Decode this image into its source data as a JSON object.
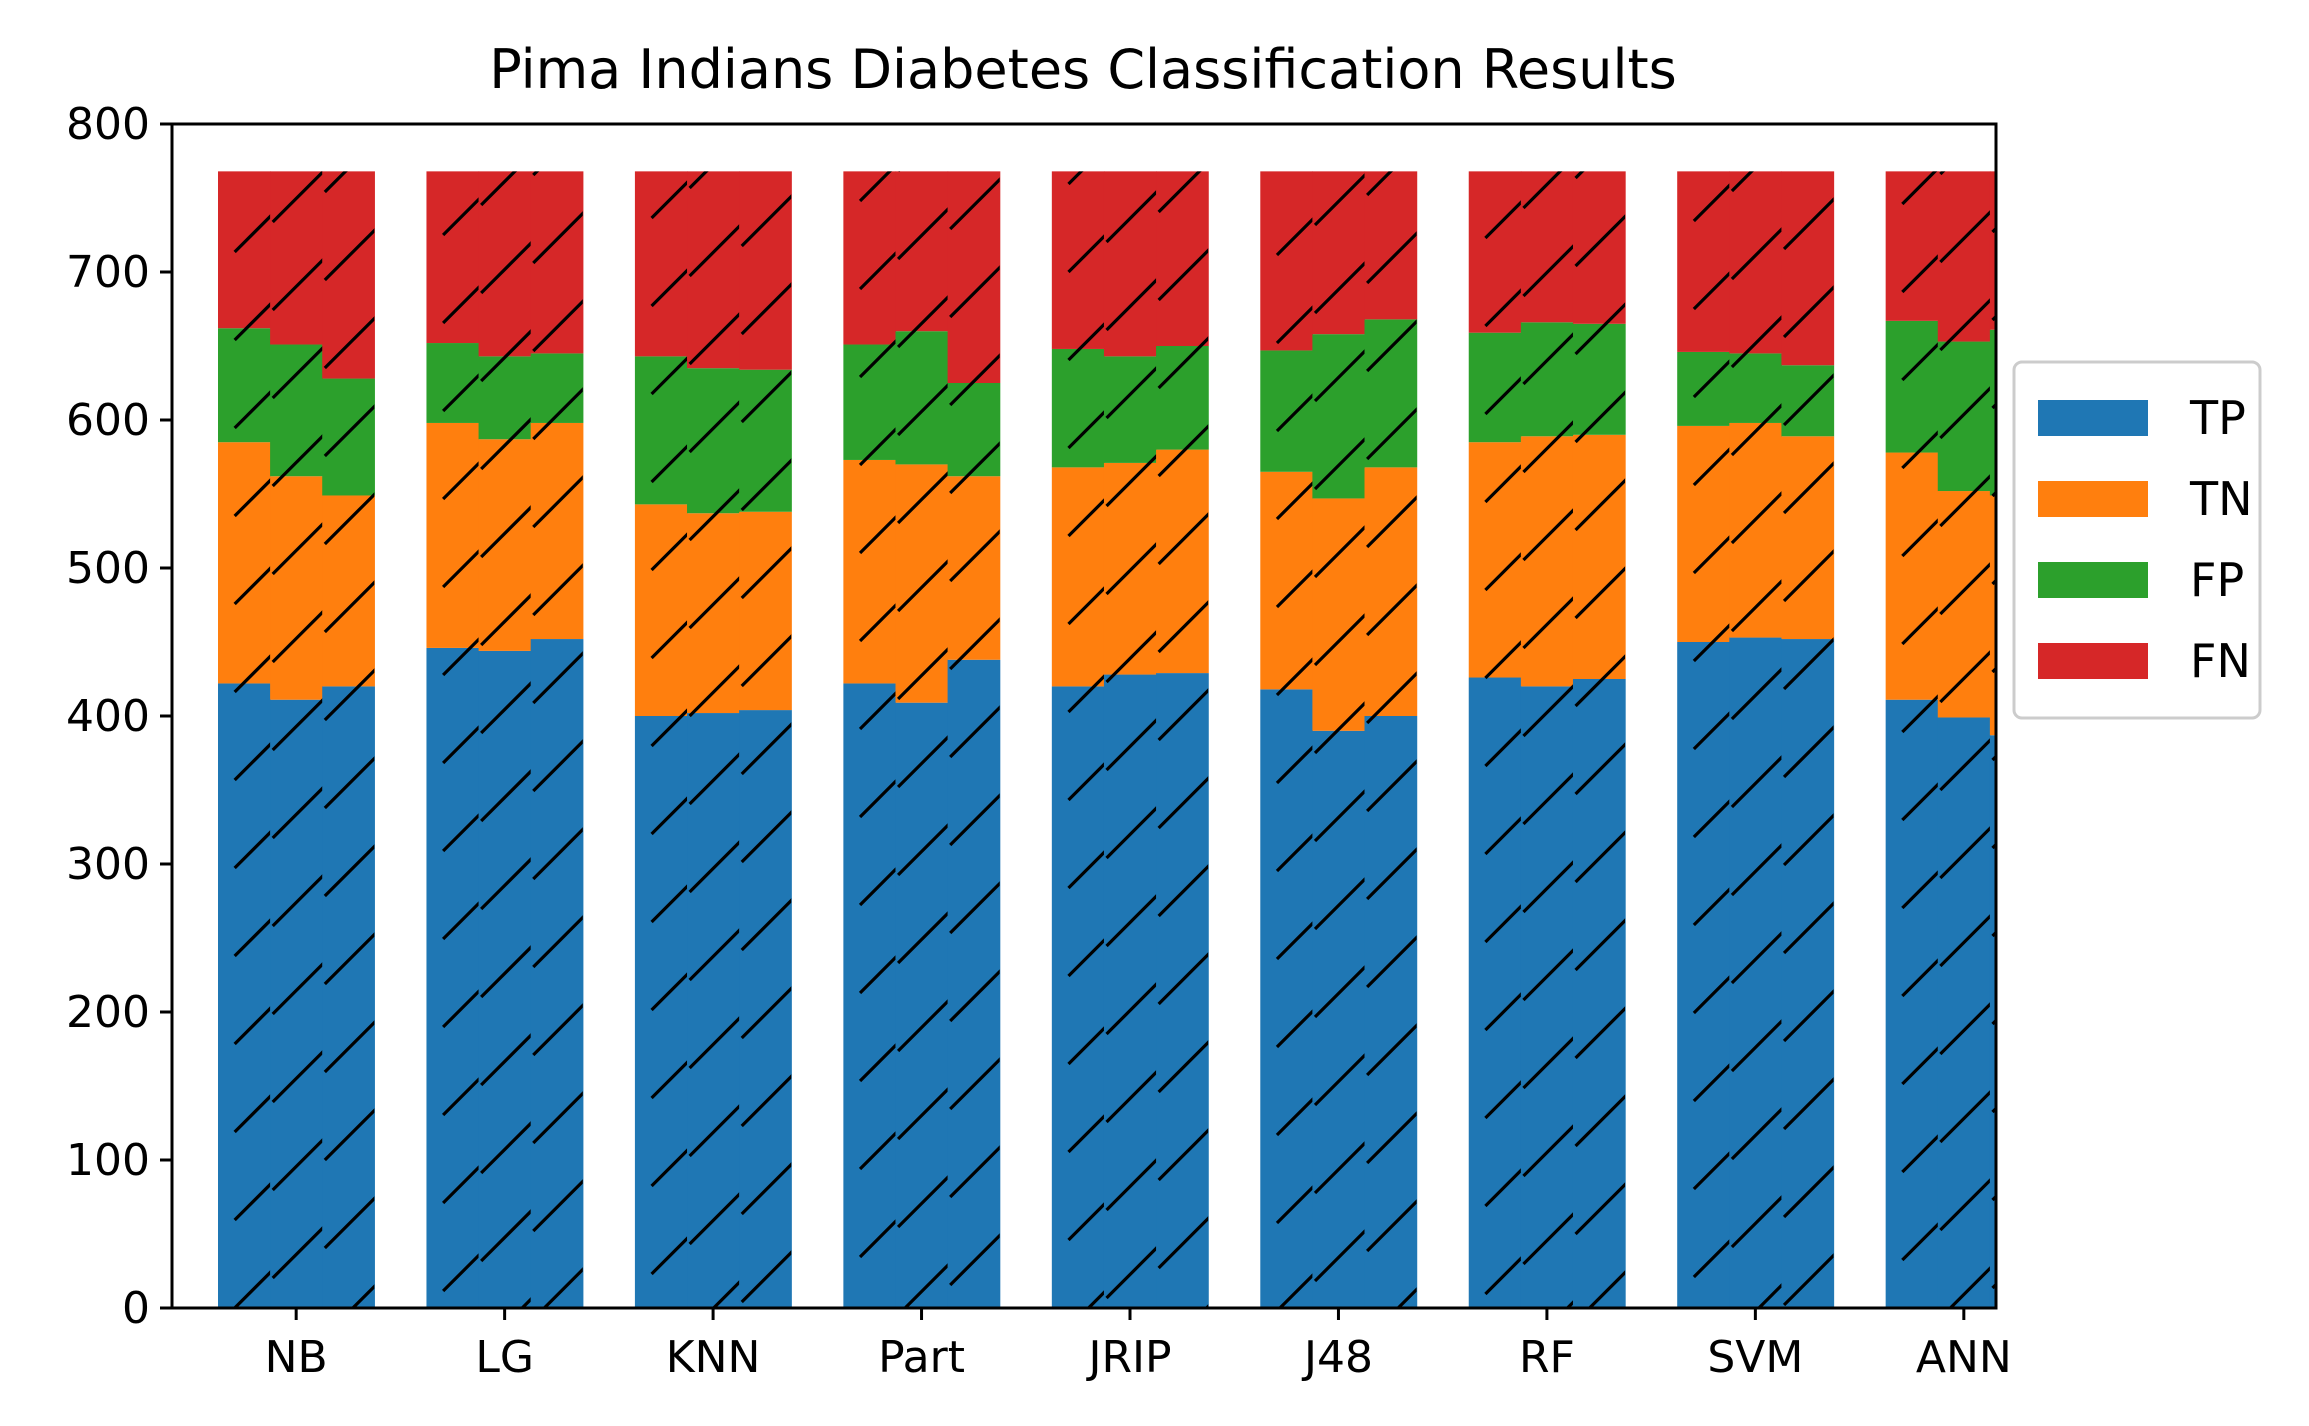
{
  "chart_data": {
    "type": "bar",
    "stacked": true,
    "title": "Pima Indians Diabetes Classification Results",
    "xlabel": "",
    "ylabel": "",
    "ylim": [
      0,
      800
    ],
    "yticks": [
      0,
      100,
      200,
      300,
      400,
      500,
      600,
      700,
      800
    ],
    "grid": false,
    "legend_position": "right",
    "hatch": "diagonal",
    "categories": [
      "NB",
      "LG",
      "KNN",
      "Part",
      "JRIP",
      "J48",
      "RF",
      "SVM",
      "ANN"
    ],
    "sub_bars_per_category": 3,
    "series": [
      {
        "name": "TP",
        "color": "#1f77b4",
        "values": [
          [
            422,
            411,
            420
          ],
          [
            446,
            444,
            452
          ],
          [
            400,
            402,
            404
          ],
          [
            422,
            409,
            438
          ],
          [
            420,
            428,
            429
          ],
          [
            418,
            390,
            400
          ],
          [
            426,
            420,
            425
          ],
          [
            450,
            453,
            452
          ],
          [
            411,
            399,
            387
          ]
        ]
      },
      {
        "name": "TN",
        "color": "#ff7f0e",
        "values": [
          [
            163,
            151,
            129
          ],
          [
            152,
            143,
            146
          ],
          [
            143,
            135,
            134
          ],
          [
            151,
            161,
            124
          ],
          [
            148,
            143,
            151
          ],
          [
            147,
            157,
            168
          ],
          [
            159,
            169,
            165
          ],
          [
            146,
            145,
            137
          ],
          [
            167,
            153,
            162
          ]
        ]
      },
      {
        "name": "FP",
        "color": "#2ca02c",
        "values": [
          [
            77,
            89,
            79
          ],
          [
            54,
            56,
            47
          ],
          [
            100,
            98,
            96
          ],
          [
            78,
            90,
            63
          ],
          [
            80,
            72,
            70
          ],
          [
            82,
            111,
            100
          ],
          [
            74,
            77,
            75
          ],
          [
            50,
            47,
            48
          ],
          [
            89,
            101,
            112
          ]
        ]
      },
      {
        "name": "FN",
        "color": "#d62728",
        "values": [
          [
            106,
            117,
            140
          ],
          [
            116,
            125,
            123
          ],
          [
            125,
            133,
            134
          ],
          [
            117,
            108,
            143
          ],
          [
            120,
            125,
            118
          ],
          [
            121,
            110,
            100
          ],
          [
            109,
            102,
            103
          ],
          [
            122,
            123,
            131
          ],
          [
            101,
            115,
            107
          ]
        ]
      }
    ]
  }
}
